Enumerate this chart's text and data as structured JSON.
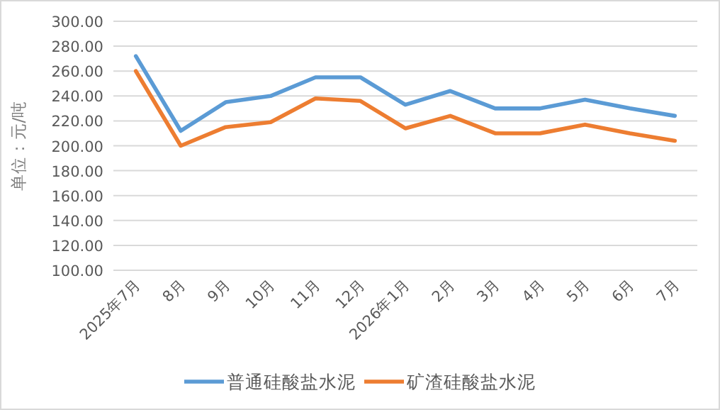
{
  "chart_data": {
    "type": "line",
    "ylabel": "单位：元/吨",
    "categories": [
      "2025年7月",
      "8月",
      "9月",
      "10月",
      "11月",
      "12月",
      "2026年1月",
      "2月",
      "3月",
      "4月",
      "5月",
      "6月",
      "7月"
    ],
    "series": [
      {
        "name": "普通硅酸盐水泥",
        "color": "#5b9bd5",
        "values": [
          272,
          212,
          235,
          240,
          255,
          255,
          233,
          244,
          230,
          230,
          237,
          230,
          224
        ]
      },
      {
        "name": "矿渣硅酸盐水泥",
        "color": "#ed7d31",
        "values": [
          260,
          200,
          215,
          219,
          238,
          236,
          214,
          224,
          210,
          210,
          217,
          210,
          204
        ]
      }
    ],
    "ylim": [
      100,
      300
    ],
    "yticks": [
      {
        "value": 100,
        "label": "100.00"
      },
      {
        "value": 120,
        "label": "120.00"
      },
      {
        "value": 140,
        "label": "140.00"
      },
      {
        "value": 160,
        "label": "160.00"
      },
      {
        "value": 180,
        "label": "180.00"
      },
      {
        "value": 200,
        "label": "200.00"
      },
      {
        "value": 220,
        "label": "220.00"
      },
      {
        "value": 240,
        "label": "240.00"
      },
      {
        "value": 260,
        "label": "260.00"
      },
      {
        "value": 280,
        "label": "280.00"
      },
      {
        "value": 300,
        "label": "300.00"
      }
    ],
    "grid": "y",
    "legend": "bottom",
    "marker": "none",
    "line_style": "solid"
  }
}
